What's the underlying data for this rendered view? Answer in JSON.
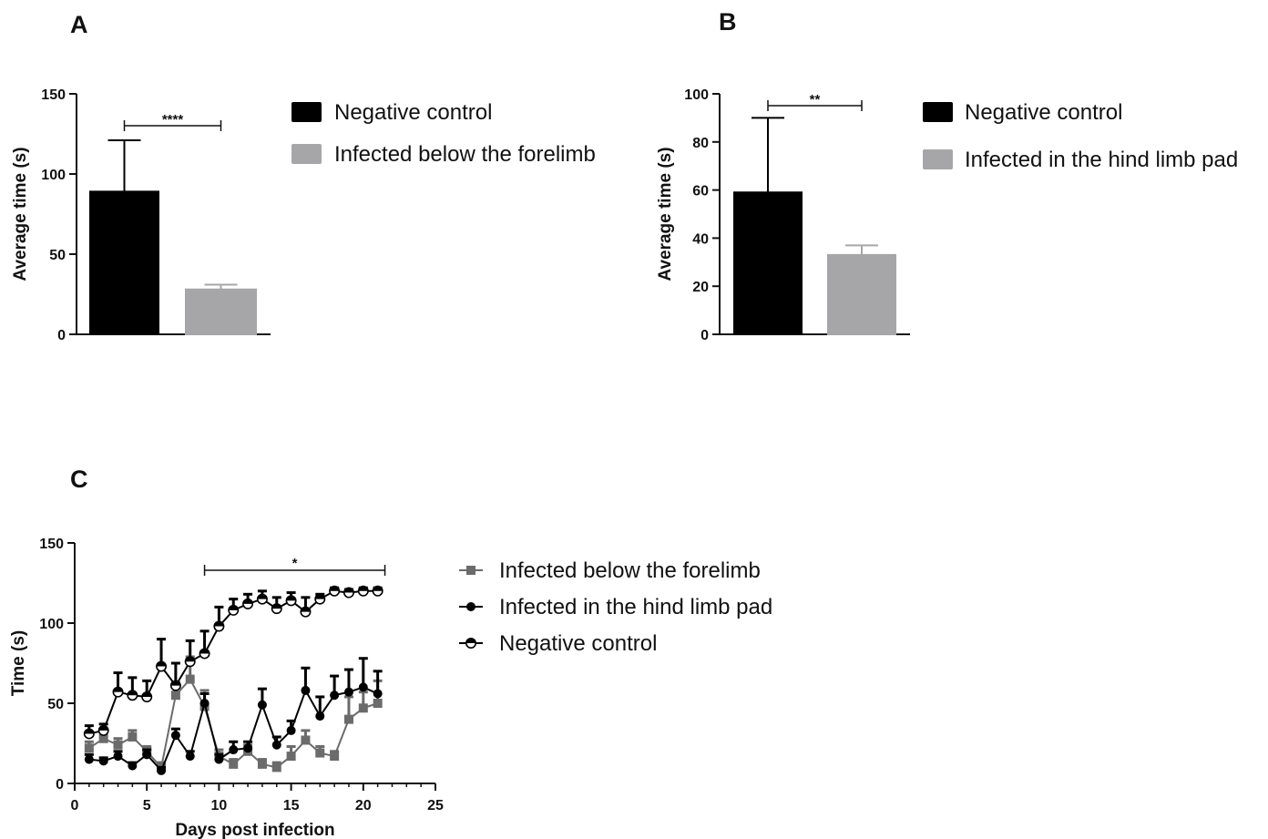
{
  "chart_data": [
    {
      "panel": "A",
      "type": "bar",
      "ylabel": "Average time (s)",
      "ylim": [
        0,
        150
      ],
      "yticks": [
        0,
        50,
        100,
        150
      ],
      "categories": [
        "Negative control",
        "Infected  below the forelimb"
      ],
      "values": [
        89,
        28
      ],
      "errors": [
        32,
        3
      ],
      "colors": [
        "#000000",
        "#a6a6a8"
      ],
      "significance": "****",
      "legend": [
        {
          "label": "Negative control",
          "color": "#000000"
        },
        {
          "label": "Infected  below the forelimb",
          "color": "#a6a6a8"
        }
      ],
      "legend_position": "right"
    },
    {
      "panel": "B",
      "type": "bar",
      "ylabel": "Average time (s)",
      "ylim": [
        0,
        100
      ],
      "yticks": [
        0,
        20,
        40,
        60,
        80,
        100
      ],
      "categories": [
        "Negative control",
        "Infected in the hind limb pad"
      ],
      "values": [
        59,
        33
      ],
      "errors": [
        31,
        4
      ],
      "colors": [
        "#000000",
        "#a6a6a8"
      ],
      "significance": "**",
      "legend": [
        {
          "label": "Negative control",
          "color": "#000000"
        },
        {
          "label": "Infected in the hind limb pad",
          "color": "#a6a6a8"
        }
      ],
      "legend_position": "right"
    },
    {
      "panel": "C",
      "type": "line",
      "xlabel": "Days post infection",
      "ylabel": "Time (s)",
      "xlim": [
        0,
        25
      ],
      "ylim": [
        0,
        150
      ],
      "xticks": [
        0,
        5,
        10,
        15,
        20,
        25
      ],
      "yticks": [
        0,
        50,
        100,
        150
      ],
      "significance": "*",
      "significance_span": [
        9,
        21.5
      ],
      "x": [
        1,
        2,
        3,
        4,
        5,
        6,
        7,
        8,
        9,
        10,
        11,
        12,
        13,
        14,
        15,
        16,
        17,
        18,
        19,
        20,
        21
      ],
      "series": [
        {
          "name": "Infected  below the forelimb",
          "marker": "square",
          "color": "#6b6b6b",
          "values": [
            22,
            28,
            24,
            29,
            20,
            10,
            55,
            65,
            48,
            17,
            12,
            20,
            12,
            10,
            17,
            27,
            19,
            17,
            40,
            47,
            50
          ],
          "errors": [
            4,
            4,
            4,
            4,
            3,
            3,
            8,
            14,
            10,
            4,
            3,
            4,
            3,
            3,
            6,
            6,
            4,
            3,
            14,
            10,
            14
          ]
        },
        {
          "name": "Infected in the hind limb pad",
          "marker": "filled-circle",
          "color": "#000000",
          "values": [
            15,
            14,
            17,
            11,
            18,
            8,
            30,
            17,
            50,
            15,
            21,
            22,
            49,
            24,
            33,
            58,
            42,
            55,
            57,
            60,
            56
          ],
          "errors": [
            3,
            2,
            3,
            2,
            3,
            2,
            4,
            3,
            6,
            3,
            5,
            4,
            10,
            5,
            6,
            14,
            12,
            12,
            14,
            18,
            14
          ]
        },
        {
          "name": "Negative control",
          "marker": "half-filled-circle",
          "color": "#000000",
          "values": [
            31,
            33,
            57,
            55,
            54,
            73,
            61,
            76,
            81,
            98,
            108,
            112,
            115,
            109,
            114,
            107,
            115,
            120,
            119,
            120,
            120
          ],
          "errors": [
            5,
            4,
            12,
            11,
            10,
            17,
            14,
            13,
            14,
            12,
            7,
            6,
            5,
            7,
            5,
            9,
            3,
            2,
            2,
            2,
            2
          ]
        }
      ],
      "legend_position": "right"
    }
  ]
}
